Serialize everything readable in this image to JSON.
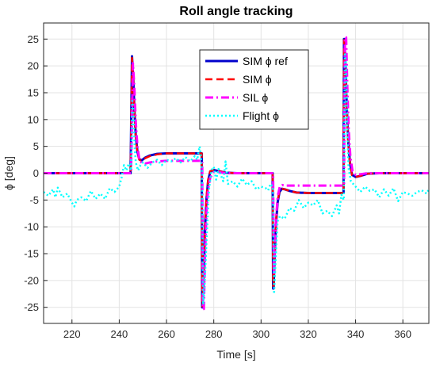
{
  "chart_data": {
    "type": "line",
    "title": "Roll angle tracking",
    "xlabel": "Time [s]",
    "ylabel": "ϕ [deg]",
    "xlim": [
      208,
      371
    ],
    "ylim": [
      -28,
      28
    ],
    "xticks": [
      220,
      240,
      260,
      280,
      300,
      320,
      340,
      360
    ],
    "yticks": [
      -25,
      -20,
      -15,
      -10,
      -5,
      0,
      5,
      10,
      15,
      20,
      25
    ],
    "grid": true,
    "legend_position": "top-center",
    "series": [
      {
        "name": "SIM ϕ ref",
        "color": "#0000cc",
        "style": "solid",
        "x": [
          208,
          244.8,
          245.4,
          245.9,
          246.4,
          247,
          247.7,
          248.5,
          249.5,
          251,
          253,
          256,
          260,
          265,
          270,
          274.9,
          275.1,
          275.3,
          275.8,
          276.3,
          276.9,
          277.6,
          278.5,
          280,
          282,
          285,
          290,
          295,
          300,
          304.9,
          305.1,
          305.3,
          305.8,
          306.4,
          307,
          307.8,
          308.8,
          310,
          312,
          315,
          320,
          325,
          330,
          334.9,
          335.1,
          335.3,
          335.8,
          336.3,
          336.9,
          337.6,
          338.5,
          340,
          342,
          345,
          350,
          360,
          371
        ],
        "y": [
          0,
          0,
          21.8,
          18,
          12,
          7,
          4,
          2.6,
          2.4,
          2.9,
          3.3,
          3.6,
          3.7,
          3.7,
          3.7,
          3.7,
          -25,
          -25,
          -18,
          -10,
          -5,
          -1.5,
          0.3,
          0.6,
          0.4,
          0.1,
          0,
          0,
          0,
          0,
          -21.5,
          -21.5,
          -15,
          -9,
          -5.5,
          -3.5,
          -2.9,
          -3,
          -3.3,
          -3.6,
          -3.7,
          -3.7,
          -3.7,
          -3.7,
          25,
          25,
          19,
          12,
          6,
          2,
          -0.3,
          -0.7,
          -0.5,
          -0.1,
          0,
          0,
          0
        ]
      },
      {
        "name": "SIM ϕ",
        "color": "#ff0000",
        "style": "dashed",
        "x": [
          208,
          244.8,
          245.4,
          245.9,
          246.4,
          247,
          247.7,
          248.5,
          249.5,
          251,
          253,
          256,
          260,
          265,
          270,
          274.9,
          275.1,
          275.3,
          275.8,
          276.3,
          276.9,
          277.6,
          278.5,
          280,
          282,
          285,
          290,
          295,
          300,
          304.9,
          305.1,
          305.3,
          305.8,
          306.4,
          307,
          307.8,
          308.8,
          310,
          312,
          315,
          320,
          325,
          330,
          334.9,
          335.1,
          335.3,
          335.8,
          336.3,
          336.9,
          337.6,
          338.5,
          340,
          342,
          345,
          350,
          360,
          371
        ],
        "y": [
          0,
          0,
          21.5,
          17.5,
          11.5,
          6.5,
          3.8,
          2.5,
          2.3,
          2.8,
          3.2,
          3.5,
          3.7,
          3.7,
          3.7,
          3.7,
          -24.8,
          -24.8,
          -17.5,
          -9.5,
          -4.6,
          -1.2,
          0.4,
          0.6,
          0.4,
          0.1,
          0,
          0,
          0,
          0,
          -21,
          -21,
          -14.5,
          -8.5,
          -5.2,
          -3.4,
          -2.9,
          -3,
          -3.3,
          -3.6,
          -3.7,
          -3.7,
          -3.7,
          -3.7,
          24.8,
          24.8,
          18.5,
          11.5,
          5.5,
          1.8,
          -0.4,
          -0.7,
          -0.5,
          -0.1,
          0,
          0,
          0
        ]
      },
      {
        "name": "SIL ϕ",
        "color": "#ff00ff",
        "style": "dashdot",
        "x": [
          208,
          245,
          245.8,
          246.4,
          247,
          247.7,
          248.5,
          249.5,
          251,
          253,
          256,
          260,
          265,
          270,
          275.1,
          275.4,
          275.8,
          276.3,
          276.9,
          277.6,
          278.5,
          280,
          282,
          285,
          290,
          295,
          300,
          305.1,
          305.4,
          305.9,
          306.5,
          307.1,
          307.9,
          308.9,
          310,
          312,
          315,
          320,
          325,
          330,
          335.1,
          335.5,
          336,
          336.5,
          337.1,
          337.8,
          338.7,
          340,
          342,
          345,
          350,
          360,
          371
        ],
        "y": [
          0,
          0,
          20.5,
          16,
          9.5,
          5,
          2.6,
          1.9,
          1.8,
          2,
          2.2,
          2.3,
          2.3,
          2.3,
          2.3,
          -25.3,
          -25.3,
          -15,
          -7.5,
          -3,
          -0.8,
          0.2,
          0.2,
          0,
          0,
          0,
          0,
          0,
          -19,
          -13,
          -7.5,
          -4.2,
          -2.6,
          -2.2,
          -2.3,
          -2.3,
          -2.3,
          -2.3,
          -2.3,
          -2.3,
          -2.3,
          25.3,
          25.3,
          16,
          8,
          3,
          0.4,
          -0.3,
          -0.2,
          0,
          0,
          0,
          0
        ]
      },
      {
        "name": "Flight ϕ",
        "color": "#00ffff",
        "style": "dotted",
        "x": [
          208,
          210,
          212,
          213,
          214,
          216,
          218,
          220,
          221,
          222,
          224,
          226,
          228,
          230,
          232,
          234,
          236,
          238,
          240,
          241,
          242,
          243,
          244,
          245,
          245.5,
          246,
          246.5,
          247,
          248,
          249,
          250,
          252,
          254,
          256,
          258,
          260,
          262,
          264,
          266,
          268,
          270,
          272,
          273,
          274,
          274.5,
          275,
          275.5,
          276,
          277,
          278,
          279,
          280,
          281,
          282,
          284,
          285,
          286,
          288,
          290,
          292,
          294,
          296,
          298,
          300,
          302,
          303,
          304,
          305,
          305.5,
          306,
          306.5,
          307,
          308,
          310,
          312,
          314,
          316,
          318,
          320,
          322,
          324,
          326,
          328,
          330,
          332,
          333,
          334,
          335,
          335.5,
          336,
          336.5,
          337,
          338,
          340,
          342,
          344,
          346,
          348,
          350,
          352,
          354,
          356,
          358,
          360,
          362,
          364,
          366,
          368,
          370,
          371
        ],
        "y": [
          -3.5,
          -4.2,
          -3,
          -4.5,
          -2.7,
          -4.5,
          -3.8,
          -5.5,
          -6.2,
          -5,
          -4.5,
          -5.2,
          -3.3,
          -4.8,
          -3.8,
          -4.8,
          -2.8,
          -3.5,
          -2.5,
          -0.8,
          1.5,
          0.5,
          1.8,
          0.5,
          13.5,
          12,
          5,
          2,
          0.5,
          1.5,
          2,
          1,
          2,
          2.5,
          1.5,
          2.5,
          2.2,
          2.8,
          2,
          3,
          2.2,
          3.2,
          2.5,
          5,
          3.5,
          0.5,
          -24.5,
          -22,
          -12,
          -3,
          0.5,
          1.2,
          -1.2,
          0.8,
          -1.5,
          2.2,
          -2,
          -1.5,
          -2.5,
          -1,
          -2.2,
          -1.5,
          -3,
          -2.5,
          -2.8,
          -3.2,
          -2,
          -2.5,
          -22.5,
          -18,
          -13,
          -9,
          -8,
          -8.5,
          -6.5,
          -7,
          -5,
          -6.5,
          -5.5,
          -6,
          -5,
          -7.5,
          -7,
          -8,
          -6,
          -7.5,
          -4,
          -5,
          22.5,
          20,
          8,
          1,
          -1.5,
          -2.5,
          -3.5,
          -2.5,
          -3.3,
          -3,
          -4.5,
          -3,
          -4.2,
          -2.8,
          -5.2,
          -3.5,
          -3.8,
          -4.2,
          -3.5,
          -3.2,
          -3.8,
          -3
        ]
      }
    ]
  }
}
